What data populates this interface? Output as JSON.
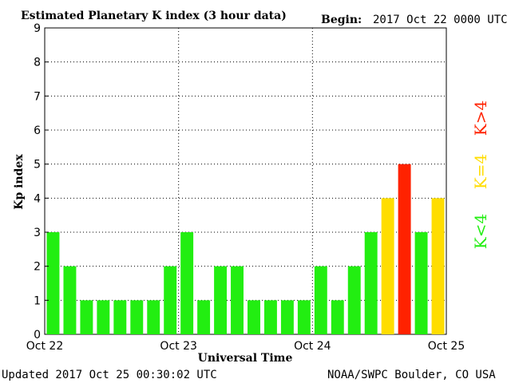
{
  "header": {
    "title": "Estimated Planetary K index (3 hour data)",
    "begin_label": "Begin:",
    "begin_value": "2017 Oct 22 0000 UTC"
  },
  "footer": {
    "updated": "Updated 2017 Oct 25 00:30:02 UTC",
    "source": "NOAA/SWPC Boulder, CO USA"
  },
  "legend": {
    "low": "K<4",
    "mid": "K=4",
    "high": "K>4"
  },
  "colors": {
    "low": "#22ee11",
    "mid": "#ffdd00",
    "high": "#ff2200"
  },
  "chart_data": {
    "type": "bar",
    "title": "Estimated Planetary K index (3 hour data)",
    "xlabel": "Universal Time",
    "ylabel": "Kp index",
    "ylim": [
      0,
      9
    ],
    "yticks": [
      "0",
      "1",
      "2",
      "3",
      "4",
      "5",
      "6",
      "7",
      "8",
      "9"
    ],
    "xticks": [
      "Oct 22",
      "Oct 23",
      "Oct 24",
      "Oct 25"
    ],
    "grid": true,
    "values": [
      3,
      2,
      1,
      1,
      1,
      1,
      1,
      2,
      3,
      1,
      2,
      2,
      1,
      1,
      1,
      1,
      2,
      1,
      2,
      3,
      4,
      5,
      3,
      4
    ]
  }
}
